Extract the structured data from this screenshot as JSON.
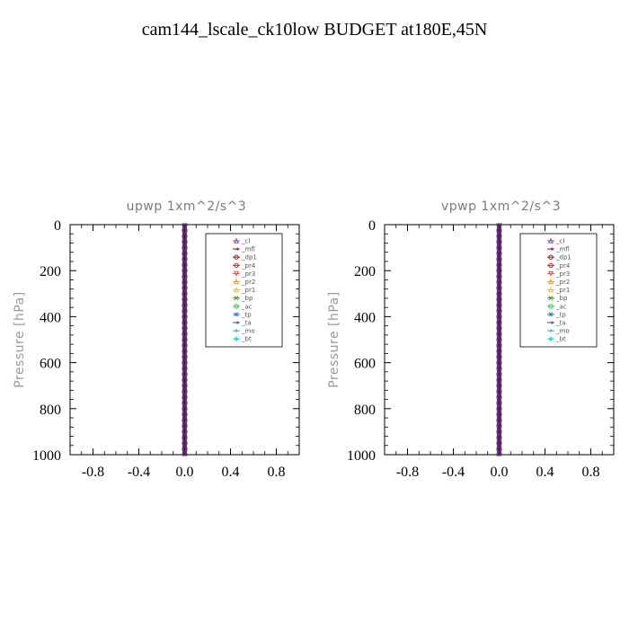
{
  "title": "cam144_lscale_ck10low  BUDGET at180E,45N",
  "legend_labels": [
    "_cl",
    "_mfl",
    "_dp1",
    "_pr4",
    "_pr3",
    "_pr2",
    "_pr1",
    "_bp",
    "_ac",
    "_tp",
    "_ta",
    "_mo",
    "_bt"
  ],
  "legend_colors": [
    "#8a4f9e",
    "#7b1a73",
    "#9b1830",
    "#c0282a",
    "#e8504a",
    "#f39a2d",
    "#e9c340",
    "#34a02b",
    "#3fbf4f",
    "#3a72c8",
    "#4a3fb5",
    "#31a8d8",
    "#17dde6"
  ],
  "chart_data": [
    {
      "type": "line",
      "title": "upwp   1xm^2/s^3",
      "ylabel": "Pressure  [hPa]",
      "xlabel": "",
      "xlim": [
        -1.0,
        1.0
      ],
      "ylim": [
        1000,
        0
      ],
      "y_inverted": true,
      "xticks": [
        -0.8,
        -0.4,
        0.0,
        0.4,
        0.8
      ],
      "xtick_labels": [
        "-0.8",
        "-0.4",
        "0.0",
        "0.4",
        "0.8"
      ],
      "yticks": [
        0,
        200,
        400,
        600,
        800,
        1000
      ],
      "ytick_labels": [
        "0",
        "200",
        "400",
        "600",
        "800",
        "1000"
      ],
      "legend_position": "top-right",
      "pressure_levels": [
        0,
        25,
        50,
        75,
        100,
        125,
        150,
        175,
        200,
        225,
        250,
        275,
        300,
        325,
        350,
        375,
        400,
        425,
        450,
        475,
        500,
        525,
        550,
        575,
        600,
        625,
        650,
        675,
        700,
        725,
        750,
        775,
        800,
        825,
        850,
        875,
        900,
        925,
        950,
        975,
        1000
      ],
      "series": [
        {
          "name": "_cl",
          "value": 0.0
        },
        {
          "name": "_mfl",
          "value": 0.0
        },
        {
          "name": "_dp1",
          "value": 0.0
        },
        {
          "name": "_pr4",
          "value": 0.0
        },
        {
          "name": "_pr3",
          "value": 0.0
        },
        {
          "name": "_pr2",
          "value": 0.0
        },
        {
          "name": "_pr1",
          "value": 0.0
        },
        {
          "name": "_bp",
          "value": 0.0
        },
        {
          "name": "_ac",
          "value": 0.0
        },
        {
          "name": "_tp",
          "value": 0.0
        },
        {
          "name": "_ta",
          "value": 0.0
        },
        {
          "name": "_mo",
          "value": 0.0
        },
        {
          "name": "_bt",
          "value": 0.0
        }
      ]
    },
    {
      "type": "line",
      "title": "vpwp   1xm^2/s^3",
      "ylabel": "Pressure  [hPa]",
      "xlabel": "",
      "xlim": [
        -1.0,
        1.0
      ],
      "ylim": [
        1000,
        0
      ],
      "y_inverted": true,
      "xticks": [
        -0.8,
        -0.4,
        0.0,
        0.4,
        0.8
      ],
      "xtick_labels": [
        "-0.8",
        "-0.4",
        "0.0",
        "0.4",
        "0.8"
      ],
      "yticks": [
        0,
        200,
        400,
        600,
        800,
        1000
      ],
      "ytick_labels": [
        "0",
        "200",
        "400",
        "600",
        "800",
        "1000"
      ],
      "legend_position": "top-right",
      "pressure_levels": [
        0,
        25,
        50,
        75,
        100,
        125,
        150,
        175,
        200,
        225,
        250,
        275,
        300,
        325,
        350,
        375,
        400,
        425,
        450,
        475,
        500,
        525,
        550,
        575,
        600,
        625,
        650,
        675,
        700,
        725,
        750,
        775,
        800,
        825,
        850,
        875,
        900,
        925,
        950,
        975,
        1000
      ],
      "series": [
        {
          "name": "_cl",
          "value": 0.0
        },
        {
          "name": "_mfl",
          "value": 0.0
        },
        {
          "name": "_dp1",
          "value": 0.0
        },
        {
          "name": "_pr4",
          "value": 0.0
        },
        {
          "name": "_pr3",
          "value": 0.0
        },
        {
          "name": "_pr2",
          "value": 0.0
        },
        {
          "name": "_pr1",
          "value": 0.0
        },
        {
          "name": "_bp",
          "value": 0.0
        },
        {
          "name": "_ac",
          "value": 0.0
        },
        {
          "name": "_tp",
          "value": 0.0
        },
        {
          "name": "_ta",
          "value": 0.0
        },
        {
          "name": "_mo",
          "value": 0.0
        },
        {
          "name": "_bt",
          "value": 0.0
        }
      ]
    }
  ]
}
